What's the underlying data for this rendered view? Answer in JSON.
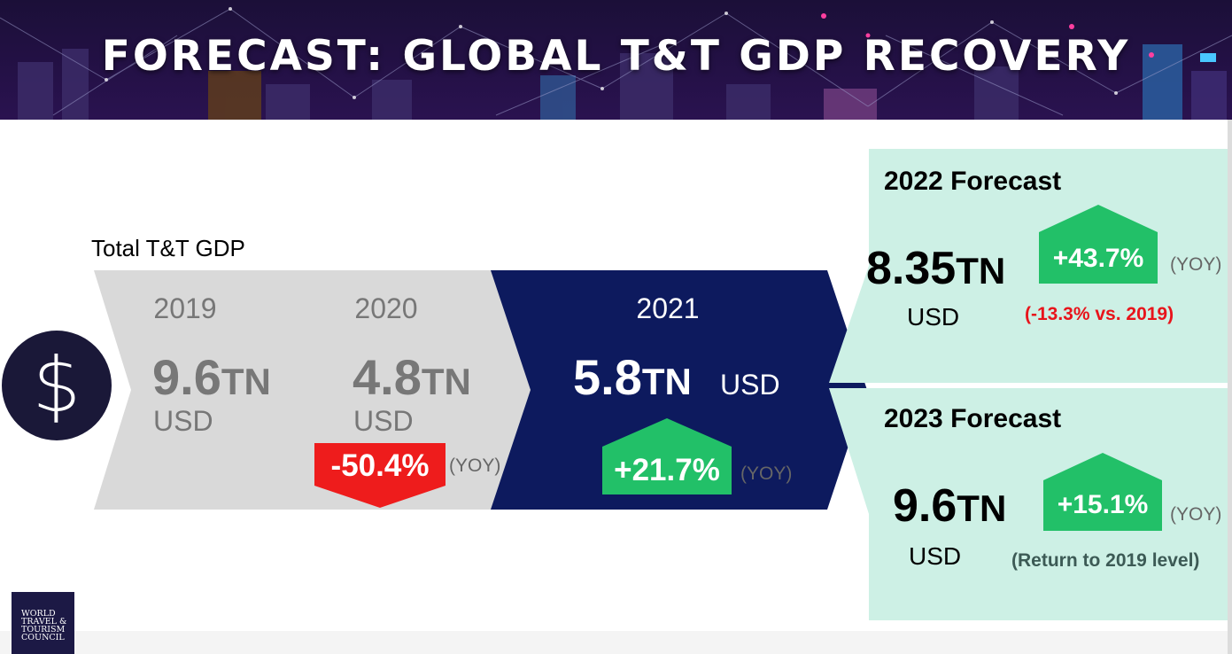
{
  "header": {
    "title": "FORECAST: GLOBAL T&T GDP RECOVERY"
  },
  "chart_data": {
    "type": "table",
    "title": "FORECAST: GLOBAL T&T GDP RECOVERY",
    "metric_label": "Total T&T GDP",
    "icon": "dollar-icon",
    "currency_symbol": "$",
    "colors": {
      "past": "#d9d9d9",
      "current": "#0d1a5e",
      "forecast": "#cdf0e5",
      "up": "#22c068",
      "down": "#ee1c1c",
      "past_text": "#777777"
    },
    "series": [
      {
        "year": "2019",
        "value": "9.6",
        "value_num": 9.6,
        "unit": "TN",
        "currency": "USD"
      },
      {
        "year": "2020",
        "value": "4.8",
        "value_num": 4.8,
        "unit": "TN",
        "currency": "USD",
        "change": "-50.4%",
        "change_num": -50.4,
        "change_label": "(YOY)"
      },
      {
        "year": "2021",
        "value": "5.8",
        "value_num": 5.8,
        "unit": "TN",
        "currency": "USD",
        "change": "+21.7%",
        "change_num": 21.7,
        "change_label": "(YOY)"
      }
    ],
    "forecasts": [
      {
        "title": "2022 Forecast",
        "value": "8.35",
        "value_num": 8.35,
        "unit": "TN",
        "currency": "USD",
        "change": "+43.7%",
        "change_num": 43.7,
        "change_label": "(YOY)",
        "note": "(-13.3% vs. 2019)"
      },
      {
        "title": "2023 Forecast",
        "value": "9.6",
        "value_num": 9.6,
        "unit": "TN",
        "currency": "USD",
        "change": "+15.1%",
        "change_num": 15.1,
        "change_label": "(YOY)",
        "note": "(Return to 2019 level)"
      }
    ]
  },
  "logo": {
    "text_lines": [
      "WORLD",
      "TRAVEL &",
      "TOURISM",
      "COUNCIL"
    ]
  }
}
